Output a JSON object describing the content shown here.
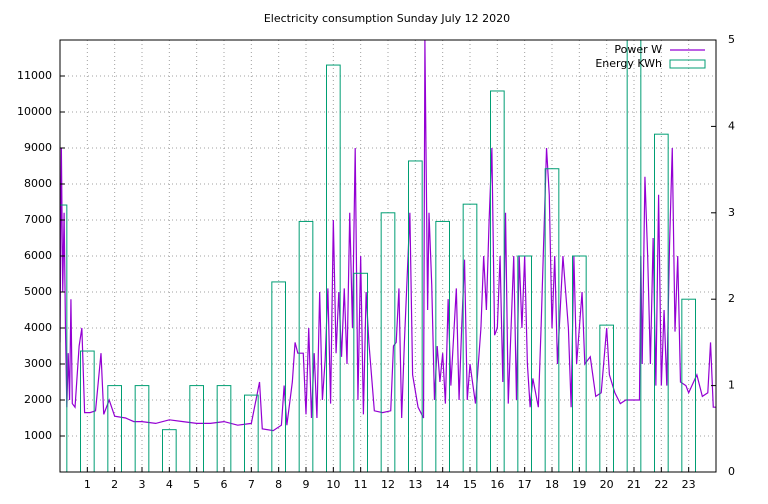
{
  "chart_data": {
    "type": "line",
    "title": "Electricity consumption Sunday July 12 2020",
    "xlim": [
      0,
      24
    ],
    "xticks": [
      1,
      2,
      3,
      4,
      5,
      6,
      7,
      8,
      9,
      10,
      11,
      12,
      13,
      14,
      15,
      16,
      17,
      18,
      19,
      20,
      21,
      22,
      23
    ],
    "ylim": [
      0,
      12000
    ],
    "yticks": [
      1000,
      2000,
      3000,
      4000,
      5000,
      6000,
      7000,
      8000,
      9000,
      10000,
      11000
    ],
    "y2lim": [
      0,
      5
    ],
    "y2ticks": [
      0,
      1,
      2,
      3,
      4,
      5
    ],
    "grid": true,
    "legend": "top-right",
    "series": [
      {
        "name": "Power W",
        "color": "#9400d3",
        "x": [
          0.0,
          0.05,
          0.1,
          0.15,
          0.2,
          0.25,
          0.3,
          0.35,
          0.4,
          0.45,
          0.55,
          0.7,
          0.8,
          0.9,
          1.1,
          1.3,
          1.5,
          1.6,
          1.8,
          2.0,
          2.4,
          2.7,
          3.0,
          3.5,
          4.0,
          4.5,
          5.0,
          5.5,
          6.0,
          6.5,
          7.0,
          7.3,
          7.4,
          7.8,
          8.1,
          8.2,
          8.3,
          8.5,
          8.6,
          8.7,
          8.9,
          9.0,
          9.1,
          9.2,
          9.3,
          9.4,
          9.5,
          9.6,
          9.7,
          9.8,
          9.9,
          10.0,
          10.1,
          10.2,
          10.3,
          10.4,
          10.5,
          10.6,
          10.7,
          10.8,
          10.9,
          11.0,
          11.1,
          11.2,
          11.3,
          11.5,
          11.8,
          12.1,
          12.2,
          12.3,
          12.4,
          12.5,
          12.6,
          12.8,
          12.9,
          13.1,
          13.3,
          13.35,
          13.45,
          13.5,
          13.6,
          13.7,
          13.8,
          13.9,
          14.0,
          14.1,
          14.2,
          14.3,
          14.5,
          14.6,
          14.7,
          14.8,
          14.9,
          15.0,
          15.2,
          15.4,
          15.5,
          15.6,
          15.7,
          15.8,
          15.9,
          16.0,
          16.1,
          16.2,
          16.3,
          16.4,
          16.6,
          16.7,
          16.8,
          16.9,
          17.0,
          17.1,
          17.2,
          17.3,
          17.5,
          17.6,
          17.8,
          17.9,
          18.0,
          18.1,
          18.2,
          18.4,
          18.6,
          18.7,
          18.8,
          18.9,
          19.1,
          19.2,
          19.4,
          19.6,
          19.8,
          20.0,
          20.1,
          20.3,
          20.5,
          20.7,
          21.2,
          21.25,
          21.3,
          21.4,
          21.5,
          21.6,
          21.7,
          21.8,
          21.9,
          22.0,
          22.1,
          22.2,
          22.3,
          22.4,
          22.5,
          22.6,
          22.7,
          22.9,
          23.0,
          23.3,
          23.5,
          23.7,
          23.8,
          23.9,
          24.0
        ],
        "values": [
          3600,
          9000,
          5000,
          7200,
          4000,
          1800,
          3300,
          2000,
          4800,
          1900,
          1800,
          3500,
          4000,
          1650,
          1650,
          1700,
          3300,
          1600,
          2000,
          1550,
          1500,
          1400,
          1400,
          1350,
          1450,
          1400,
          1350,
          1350,
          1400,
          1300,
          1350,
          2500,
          1200,
          1150,
          1300,
          2400,
          1300,
          2500,
          3600,
          3300,
          3300,
          1600,
          4000,
          1500,
          3300,
          1500,
          5000,
          2000,
          3100,
          5100,
          1900,
          7000,
          3300,
          5000,
          3200,
          5100,
          3000,
          7200,
          4000,
          9000,
          2000,
          6000,
          1600,
          5000,
          3600,
          1700,
          1650,
          1700,
          3500,
          3600,
          5100,
          1500,
          3600,
          7200,
          2700,
          1800,
          1500,
          12000,
          4500,
          7200,
          5200,
          2000,
          3500,
          2500,
          3300,
          1900,
          4800,
          2400,
          5100,
          2000,
          4100,
          5900,
          2000,
          3000,
          1900,
          4000,
          6000,
          4500,
          7000,
          9000,
          3800,
          4000,
          6000,
          2500,
          7200,
          1900,
          6000,
          2000,
          6000,
          4000,
          6000,
          3000,
          1800,
          2600,
          1800,
          4000,
          9000,
          7700,
          4000,
          6000,
          3000,
          6000,
          4000,
          1800,
          6000,
          3000,
          5000,
          3000,
          3200,
          2100,
          2200,
          4000,
          2700,
          2200,
          1900,
          2000,
          2000,
          6000,
          3000,
          8200,
          6000,
          3000,
          6500,
          2400,
          7700,
          2400,
          4500,
          2400,
          6300,
          9000,
          3900,
          6000,
          2500,
          2400,
          2200,
          2700,
          2100,
          2200,
          3600,
          1800,
          1800
        ]
      },
      {
        "name": "Energy KWh",
        "color": "#009e73",
        "axis": "y2",
        "x": [
          0,
          1,
          2,
          3,
          4,
          5,
          6,
          7,
          8,
          9,
          10,
          11,
          12,
          13,
          14,
          15,
          16,
          17,
          18,
          19,
          20,
          21,
          22,
          23
        ],
        "values": [
          3.09,
          1.4,
          1.0,
          1.0,
          0.49,
          1.0,
          1.0,
          0.89,
          2.2,
          2.9,
          4.71,
          2.3,
          3.0,
          3.6,
          2.9,
          3.1,
          4.41,
          2.5,
          3.51,
          2.5,
          1.7,
          5,
          3.91,
          2.0
        ]
      }
    ]
  }
}
